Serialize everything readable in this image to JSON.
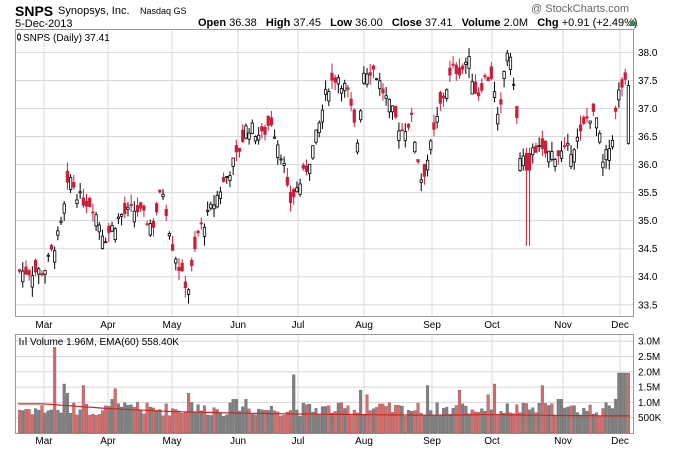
{
  "header": {
    "symbol": "SNPS",
    "company": "Synopsys, Inc.",
    "exchange": "Nasdaq GS",
    "date": "5-Dec-2013",
    "credit": "@ StockCharts.com",
    "open_label": "Open",
    "open": "36.38",
    "high_label": "High",
    "high": "37.45",
    "low_label": "Low",
    "low": "36.00",
    "close_label": "Close",
    "close": "37.41",
    "volume_label": "Volume",
    "volume": "2.0M",
    "chg_label": "Chg",
    "chg": "+0.91 (+2.49%)"
  },
  "colors": {
    "up": "#000000",
    "down": "#cc1e3c",
    "vol_up": "#808080",
    "vol_down": "#e06a6a",
    "ema": "#d62020",
    "grid": "#d8d8d8"
  },
  "chart_data": [
    {
      "type": "candlestick",
      "legend": "SNPS (Daily) 37.41",
      "ylim": [
        33.3,
        38.4
      ],
      "y_ticks": [
        "33.5",
        "34.0",
        "34.5",
        "35.0",
        "35.5",
        "36.0",
        "36.5",
        "37.0",
        "37.5",
        "38.0"
      ],
      "x_ticks": [
        "Mar",
        "Apr",
        "May",
        "Jun",
        "Jul",
        "Aug",
        "Sep",
        "Oct",
        "Nov",
        "Dec"
      ],
      "close_anchors": [
        {
          "m": 0.0,
          "v": 34.1
        },
        {
          "m": 0.25,
          "v": 34.8
        },
        {
          "m": 0.4,
          "v": 35.8
        },
        {
          "m": 0.55,
          "v": 35.4
        },
        {
          "m": 0.75,
          "v": 35.3
        },
        {
          "m": 0.95,
          "v": 34.7
        },
        {
          "m": 1.2,
          "v": 35.1
        },
        {
          "m": 1.45,
          "v": 35.2
        },
        {
          "m": 1.7,
          "v": 34.9
        },
        {
          "m": 1.85,
          "v": 35.6
        },
        {
          "m": 2.0,
          "v": 34.6
        },
        {
          "m": 2.15,
          "v": 34.0
        },
        {
          "m": 2.25,
          "v": 33.8
        },
        {
          "m": 2.4,
          "v": 34.8
        },
        {
          "m": 2.55,
          "v": 35.1
        },
        {
          "m": 2.75,
          "v": 35.6
        },
        {
          "m": 3.0,
          "v": 36.2
        },
        {
          "m": 3.15,
          "v": 36.7
        },
        {
          "m": 3.4,
          "v": 36.5
        },
        {
          "m": 3.55,
          "v": 36.8
        },
        {
          "m": 3.75,
          "v": 36.1
        },
        {
          "m": 3.85,
          "v": 35.3
        },
        {
          "m": 4.0,
          "v": 35.6
        },
        {
          "m": 4.15,
          "v": 36.0
        },
        {
          "m": 4.3,
          "v": 36.6
        },
        {
          "m": 4.45,
          "v": 37.4
        },
        {
          "m": 4.6,
          "v": 37.6
        },
        {
          "m": 4.75,
          "v": 37.3
        },
        {
          "m": 4.9,
          "v": 36.4
        },
        {
          "m": 5.0,
          "v": 37.7
        },
        {
          "m": 5.15,
          "v": 37.7
        },
        {
          "m": 5.35,
          "v": 37.1
        },
        {
          "m": 5.55,
          "v": 36.6
        },
        {
          "m": 5.7,
          "v": 36.8
        },
        {
          "m": 5.85,
          "v": 35.7
        },
        {
          "m": 6.0,
          "v": 36.4
        },
        {
          "m": 6.15,
          "v": 37.1
        },
        {
          "m": 6.35,
          "v": 37.7
        },
        {
          "m": 6.5,
          "v": 37.7
        },
        {
          "m": 6.6,
          "v": 37.9
        },
        {
          "m": 6.75,
          "v": 37.2
        },
        {
          "m": 6.85,
          "v": 37.5
        },
        {
          "m": 7.0,
          "v": 37.6
        },
        {
          "m": 7.1,
          "v": 36.6
        },
        {
          "m": 7.2,
          "v": 38.1
        },
        {
          "m": 7.3,
          "v": 37.6
        },
        {
          "m": 7.4,
          "v": 36.0
        },
        {
          "m": 7.55,
          "v": 36.4
        },
        {
          "m": 7.7,
          "v": 36.2
        },
        {
          "m": 7.85,
          "v": 36.2
        },
        {
          "m": 8.0,
          "v": 36.2
        },
        {
          "m": 8.15,
          "v": 36.3
        },
        {
          "m": 8.3,
          "v": 36.5
        },
        {
          "m": 8.45,
          "v": 36.9
        },
        {
          "m": 8.6,
          "v": 36.8
        },
        {
          "m": 8.7,
          "v": 36.0
        },
        {
          "m": 8.85,
          "v": 36.4
        },
        {
          "m": 9.0,
          "v": 37.41
        }
      ]
    },
    {
      "type": "bar",
      "legend": "Volume 1.96M, EMA(60) 558.40K",
      "ylim": [
        0,
        3.2
      ],
      "unit": "M",
      "y_ticks": [
        "500K",
        "1.0M",
        "1.5M",
        "2.0M",
        "2.5M",
        "3.0M"
      ],
      "spikes": [
        {
          "m": 0.15,
          "v": 2.8
        },
        {
          "m": 0.3,
          "v": 1.6
        },
        {
          "m": 0.35,
          "v": 1.3
        },
        {
          "m": 0.6,
          "v": 1.55
        },
        {
          "m": 1.05,
          "v": 1.1
        },
        {
          "m": 1.1,
          "v": 1.45
        },
        {
          "m": 1.45,
          "v": 1.0
        },
        {
          "m": 2.25,
          "v": 1.3
        },
        {
          "m": 2.3,
          "v": 1.0
        },
        {
          "m": 2.95,
          "v": 1.1
        },
        {
          "m": 3.15,
          "v": 1.1
        },
        {
          "m": 3.95,
          "v": 1.9
        },
        {
          "m": 4.95,
          "v": 1.4
        },
        {
          "m": 5.05,
          "v": 1.25
        },
        {
          "m": 5.25,
          "v": 0.95
        },
        {
          "m": 5.95,
          "v": 1.55
        },
        {
          "m": 6.4,
          "v": 0.9
        },
        {
          "m": 6.45,
          "v": 1.4
        },
        {
          "m": 6.5,
          "v": 0.95
        },
        {
          "m": 6.95,
          "v": 1.25
        },
        {
          "m": 7.05,
          "v": 1.6
        },
        {
          "m": 7.7,
          "v": 1.55
        },
        {
          "m": 7.95,
          "v": 1.1
        },
        {
          "m": 8.1,
          "v": 0.85
        },
        {
          "m": 8.85,
          "v": 0.8
        },
        {
          "m": 8.95,
          "v": 1.1
        },
        {
          "m": 9.0,
          "v": 1.96
        }
      ],
      "ema_anchors": [
        {
          "m": 0.0,
          "v": 0.95
        },
        {
          "m": 1.0,
          "v": 0.8
        },
        {
          "m": 2.0,
          "v": 0.7
        },
        {
          "m": 3.0,
          "v": 0.65
        },
        {
          "m": 4.0,
          "v": 0.62
        },
        {
          "m": 5.0,
          "v": 0.6
        },
        {
          "m": 6.0,
          "v": 0.58
        },
        {
          "m": 7.0,
          "v": 0.6
        },
        {
          "m": 8.0,
          "v": 0.57
        },
        {
          "m": 9.0,
          "v": 0.558
        }
      ]
    }
  ]
}
